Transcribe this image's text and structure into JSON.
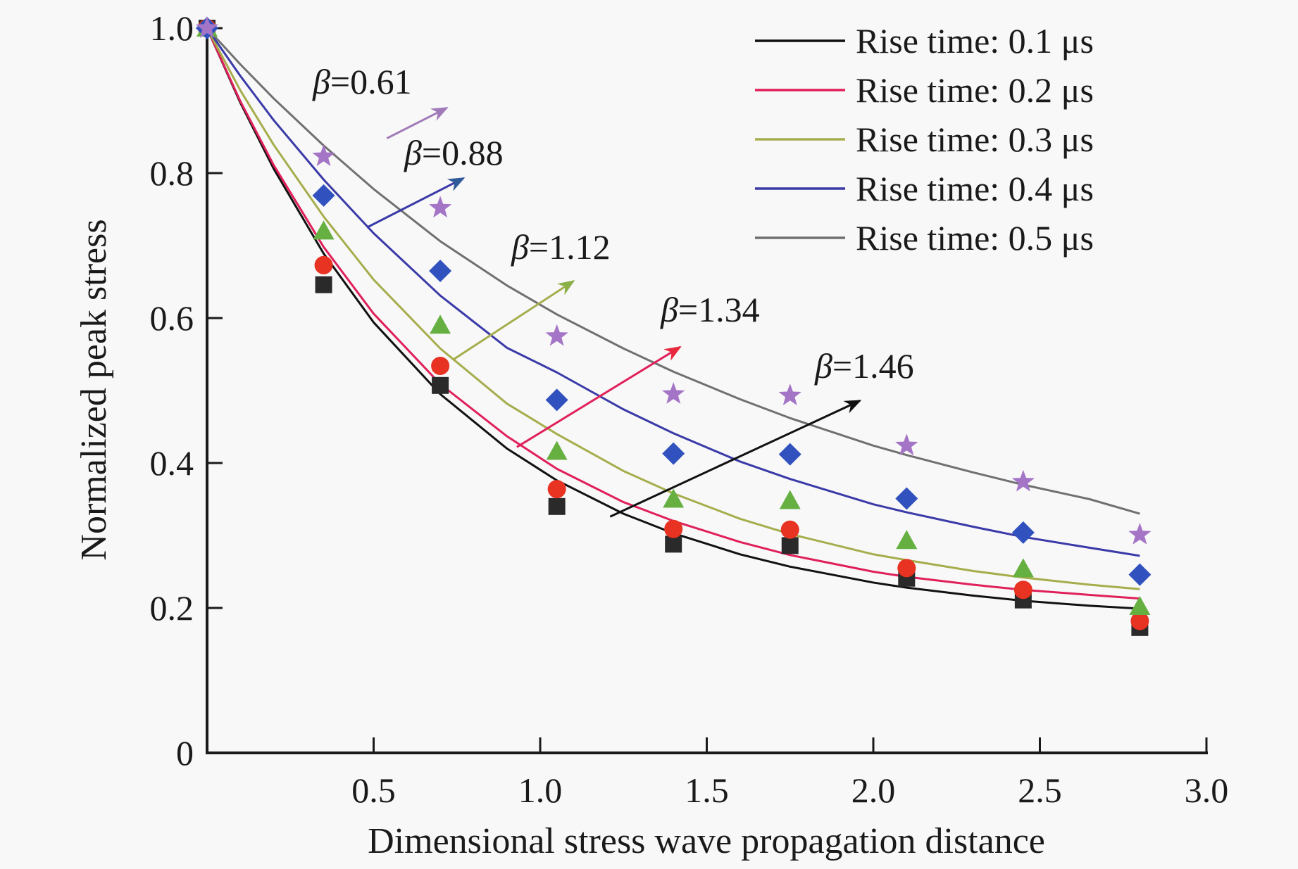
{
  "chart_data": {
    "type": "scatter",
    "title": "",
    "xlabel": "Dimensional stress wave propagation distance",
    "ylabel": "Normalized peak stress",
    "xlim": [
      0,
      3.0
    ],
    "ylim": [
      0,
      1.0
    ],
    "xticks": [
      {
        "value": 0.5,
        "label": "0.5"
      },
      {
        "value": 1.0,
        "label": "1.0"
      },
      {
        "value": 1.5,
        "label": "1.5"
      },
      {
        "value": 2.0,
        "label": "2.0"
      },
      {
        "value": 2.5,
        "label": "2.5"
      },
      {
        "value": 3.0,
        "label": "3.0"
      }
    ],
    "yticks": [
      {
        "value": 0,
        "label": "0"
      },
      {
        "value": 0.2,
        "label": "0.2"
      },
      {
        "value": 0.4,
        "label": "0.4"
      },
      {
        "value": 0.6,
        "label": "0.6"
      },
      {
        "value": 0.8,
        "label": "0.8"
      },
      {
        "value": 1.0,
        "label": "1.0"
      }
    ],
    "grid": false,
    "legend_position": "top-right",
    "x": [
      0,
      0.35,
      0.7,
      1.05,
      1.4,
      1.75,
      2.1,
      2.45,
      2.8
    ],
    "series": [
      {
        "name": "Rise time: 0.1 μs",
        "line_color": "#111111",
        "marker": "square",
        "marker_color": "#2a2a2a",
        "points": [
          1.0,
          0.646,
          0.507,
          0.34,
          0.288,
          0.286,
          0.241,
          0.211,
          0.173
        ],
        "fit": {
          "x": [
            0,
            0.1,
            0.2,
            0.35,
            0.5,
            0.7,
            0.9,
            1.05,
            1.25,
            1.4,
            1.6,
            1.75,
            2.0,
            2.1,
            2.3,
            2.45,
            2.65,
            2.8
          ],
          "y": [
            1.0,
            0.897,
            0.806,
            0.689,
            0.594,
            0.495,
            0.42,
            0.376,
            0.33,
            0.303,
            0.274,
            0.257,
            0.235,
            0.228,
            0.217,
            0.21,
            0.203,
            0.199
          ]
        }
      },
      {
        "name": "Rise time: 0.2 μs",
        "line_color": "#e0205a",
        "marker": "circle",
        "marker_color": "#e83222",
        "points": [
          1.0,
          0.673,
          0.534,
          0.364,
          0.309,
          0.308,
          0.255,
          0.225,
          0.182
        ],
        "fit": {
          "x": [
            0,
            0.1,
            0.2,
            0.35,
            0.5,
            0.7,
            0.9,
            1.05,
            1.25,
            1.4,
            1.6,
            1.75,
            2.0,
            2.1,
            2.3,
            2.45,
            2.65,
            2.8
          ],
          "y": [
            1.0,
            0.899,
            0.811,
            0.698,
            0.606,
            0.509,
            0.437,
            0.392,
            0.346,
            0.32,
            0.291,
            0.273,
            0.25,
            0.243,
            0.232,
            0.225,
            0.218,
            0.213
          ]
        }
      },
      {
        "name": "Rise time: 0.3 μs",
        "line_color": "#a6ad4c",
        "marker": "triangle",
        "marker_color": "#66b042",
        "points": [
          1.0,
          0.72,
          0.59,
          0.416,
          0.35,
          0.348,
          0.293,
          0.254,
          0.202
        ],
        "fit": {
          "x": [
            0,
            0.1,
            0.2,
            0.35,
            0.5,
            0.7,
            0.9,
            1.05,
            1.25,
            1.4,
            1.6,
            1.75,
            2.0,
            2.1,
            2.3,
            2.45,
            2.65,
            2.8
          ],
          "y": [
            1.0,
            0.914,
            0.839,
            0.74,
            0.653,
            0.558,
            0.482,
            0.44,
            0.389,
            0.358,
            0.323,
            0.302,
            0.274,
            0.266,
            0.251,
            0.242,
            0.232,
            0.226
          ]
        }
      },
      {
        "name": "Rise time: 0.4 μs",
        "line_color": "#3a3aa8",
        "marker": "diamond",
        "marker_color": "#3152be",
        "points": [
          1.0,
          0.769,
          0.665,
          0.487,
          0.413,
          0.412,
          0.351,
          0.304,
          0.246
        ],
        "fit": {
          "x": [
            0,
            0.1,
            0.2,
            0.35,
            0.5,
            0.7,
            0.9,
            1.05,
            1.25,
            1.4,
            1.6,
            1.75,
            2.0,
            2.1,
            2.3,
            2.45,
            2.65,
            2.8
          ],
          "y": [
            1.0,
            0.934,
            0.873,
            0.791,
            0.717,
            0.631,
            0.559,
            0.525,
            0.474,
            0.441,
            0.402,
            0.378,
            0.343,
            0.332,
            0.312,
            0.298,
            0.283,
            0.272
          ]
        }
      },
      {
        "name": "Rise time: 0.5 μs",
        "line_color": "#707070",
        "marker": "star",
        "marker_color": "#a474c6",
        "points": [
          1.0,
          0.823,
          0.752,
          0.575,
          0.495,
          0.493,
          0.424,
          0.374,
          0.301
        ],
        "fit": {
          "x": [
            0,
            0.1,
            0.2,
            0.35,
            0.5,
            0.7,
            0.9,
            1.05,
            1.25,
            1.4,
            1.6,
            1.75,
            2.0,
            2.1,
            2.3,
            2.45,
            2.65,
            2.8
          ],
          "y": [
            1.0,
            0.95,
            0.903,
            0.838,
            0.778,
            0.706,
            0.645,
            0.605,
            0.558,
            0.526,
            0.488,
            0.462,
            0.424,
            0.411,
            0.387,
            0.37,
            0.35,
            0.33
          ]
        }
      }
    ],
    "annotations": [
      {
        "beta_symbol": "β",
        "text": "=0.61",
        "color": "#a07ab8",
        "arrow_from": [
          0.54,
          0.848
        ],
        "arrow_to": [
          0.72,
          0.89
        ]
      },
      {
        "beta_symbol": "β",
        "text": "=0.88",
        "color": "#3a3aa8",
        "arrow_from": [
          0.48,
          0.725
        ],
        "arrow_to": [
          0.77,
          0.793
        ]
      },
      {
        "beta_symbol": "β",
        "text": "=1.12",
        "color": "#a6ad4c",
        "arrow_from": [
          0.74,
          0.543
        ],
        "arrow_to": [
          1.1,
          0.651
        ]
      },
      {
        "beta_symbol": "β",
        "text": "=1.34",
        "color": "#e0205a",
        "arrow_from": [
          0.93,
          0.422
        ],
        "arrow_to": [
          1.42,
          0.56
        ]
      },
      {
        "beta_symbol": "β",
        "text": "=1.46",
        "color": "#111111",
        "arrow_from": [
          1.21,
          0.326
        ],
        "arrow_to": [
          1.96,
          0.486
        ]
      }
    ]
  }
}
